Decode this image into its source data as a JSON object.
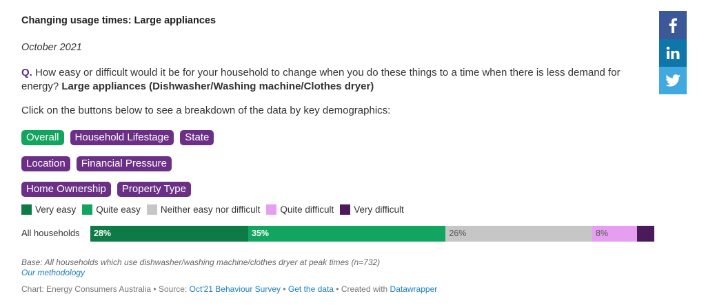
{
  "title": "Changing usage times: Large appliances",
  "date": "October 2021",
  "question": {
    "prefix": "Q.",
    "text": "How easy or difficult would it be for your household to change when you do these things to a time when there is less demand for energy?",
    "bold": "Large appliances (Dishwasher/Washing machine/Clothes dryer)"
  },
  "instruction": "Click on the buttons below to see a breakdown of the data by key demographics:",
  "buttons": {
    "overall": "Overall",
    "lifestage": "Household Lifestage",
    "state": "State",
    "location": "Location",
    "pressure": "Financial Pressure",
    "ownership": "Home Ownership",
    "property": "Property Type"
  },
  "colors": {
    "very_easy": "#0e7a45",
    "quite_easy": "#12a55f",
    "neither": "#c6c6c6",
    "quite_difficult": "#e59ef0",
    "very_difficult": "#4b1a5a"
  },
  "chart_data": {
    "type": "bar",
    "stacked": true,
    "orientation": "horizontal",
    "categories": [
      "All households"
    ],
    "series": [
      {
        "name": "Very easy",
        "values": [
          28
        ],
        "label": "28%"
      },
      {
        "name": "Quite easy",
        "values": [
          35
        ],
        "label": "35%"
      },
      {
        "name": "Neither easy nor difficult",
        "values": [
          26
        ],
        "label": "26%"
      },
      {
        "name": "Quite difficult",
        "values": [
          8
        ],
        "label": "8%"
      },
      {
        "name": "Very difficult",
        "values": [
          3
        ],
        "label": ""
      }
    ],
    "xlim": [
      0,
      100
    ],
    "legend_position": "top"
  },
  "notes": {
    "base": "Base: All households which use dishwasher/washing machine/clothes dryer at peak times (n=732)",
    "methodology": "Our methodology"
  },
  "footer": {
    "prefix": "Chart: Energy Consumers Australia • Source:",
    "source": "Oct'21 Behaviour Survey",
    "sep1": "•",
    "get_data": "Get the data",
    "created": "• Created with",
    "tool": "Datawrapper"
  },
  "social": {
    "facebook": "facebook-icon",
    "linkedin": "linkedin-icon",
    "twitter": "twitter-icon"
  }
}
